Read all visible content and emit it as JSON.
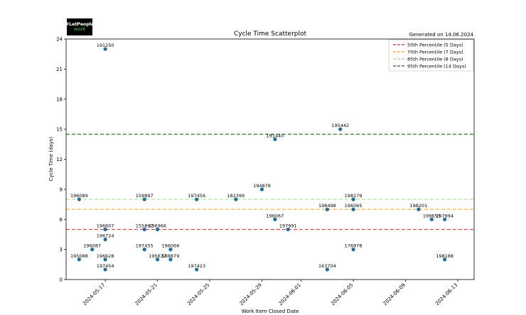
{
  "generated": "Generated on 14.06.2024",
  "logo": {
    "line1": "#LetPeople",
    "line2": "work"
  },
  "chart_data": {
    "type": "scatter",
    "title": "Cycle Time Scatterplot",
    "xlabel": "Work Item Closed Date",
    "ylabel": "Cycle Time (days)",
    "xlim": [
      "2024-05-14T00:00",
      "2024-06-14T06:00"
    ],
    "ylim": [
      0,
      24
    ],
    "yticks": [
      0,
      3,
      6,
      9,
      12,
      15,
      18,
      21,
      24
    ],
    "xticks": [
      "2024-05-17",
      "2024-05-21",
      "2024-05-25",
      "2024-05-29",
      "2024-06-01",
      "2024-06-05",
      "2024-06-09",
      "2024-06-13"
    ],
    "point_color": "#1f6f9c",
    "points": [
      {
        "date": "2024-05-15",
        "days": 8,
        "id": "196089"
      },
      {
        "date": "2024-05-15",
        "days": 2,
        "id": "195088"
      },
      {
        "date": "2024-05-16",
        "days": 3,
        "id": "196087"
      },
      {
        "date": "2024-05-17",
        "days": 23,
        "id": "191250"
      },
      {
        "date": "2024-05-17",
        "days": 5,
        "id": "196607"
      },
      {
        "date": "2024-05-17",
        "days": 4,
        "id": "196724"
      },
      {
        "date": "2024-05-17",
        "days": 2,
        "id": "196628"
      },
      {
        "date": "2024-05-17",
        "days": 1,
        "id": "197454"
      },
      {
        "date": "2024-05-20",
        "days": 8,
        "id": "159897"
      },
      {
        "date": "2024-05-20",
        "days": 5,
        "id": "155867"
      },
      {
        "date": "2024-05-20",
        "days": 3,
        "id": "197455"
      },
      {
        "date": "2024-05-21",
        "days": 5,
        "id": "196966"
      },
      {
        "date": "2024-05-21",
        "days": 2,
        "id": "195637"
      },
      {
        "date": "2024-05-22",
        "days": 3,
        "id": "196066"
      },
      {
        "date": "2024-05-22",
        "days": 2,
        "id": "188879"
      },
      {
        "date": "2024-05-24",
        "days": 8,
        "id": "197456"
      },
      {
        "date": "2024-05-24",
        "days": 1,
        "id": "197423"
      },
      {
        "date": "2024-05-27",
        "days": 8,
        "id": "182399"
      },
      {
        "date": "2024-05-29",
        "days": 9,
        "id": "194878"
      },
      {
        "date": "2024-05-30",
        "days": 14,
        "id": "191440"
      },
      {
        "date": "2024-05-30",
        "days": 6,
        "id": "196067"
      },
      {
        "date": "2024-05-31",
        "days": 5,
        "id": "197991"
      },
      {
        "date": "2024-06-03",
        "days": 7,
        "id": "198498"
      },
      {
        "date": "2024-06-03",
        "days": 1,
        "id": "163704"
      },
      {
        "date": "2024-06-04",
        "days": 15,
        "id": "195442"
      },
      {
        "date": "2024-06-05",
        "days": 8,
        "id": "198179"
      },
      {
        "date": "2024-06-05",
        "days": 7,
        "id": "196065"
      },
      {
        "date": "2024-06-05",
        "days": 3,
        "id": "176978"
      },
      {
        "date": "2024-06-10",
        "days": 7,
        "id": "198201"
      },
      {
        "date": "2024-06-11",
        "days": 6,
        "id": "199653"
      },
      {
        "date": "2024-06-12",
        "days": 6,
        "id": "197994"
      },
      {
        "date": "2024-06-12",
        "days": 2,
        "id": "198188"
      }
    ],
    "percentiles": [
      {
        "label": "50th Percentile (5 Days)",
        "value": 5,
        "color": "#d62728",
        "dash": "5,3"
      },
      {
        "label": "70th Percentile (7 Days)",
        "value": 7,
        "color": "#ff9f0a",
        "dash": "5,3"
      },
      {
        "label": "85th Percentile (8 Days)",
        "value": 8,
        "color": "#98df8a",
        "dash": "5,3"
      },
      {
        "label": "95th Percentile (14 Days)",
        "value": 14.5,
        "color": "#1b6b1b",
        "dash": "5,3"
      }
    ],
    "legend_position": "top-right"
  }
}
